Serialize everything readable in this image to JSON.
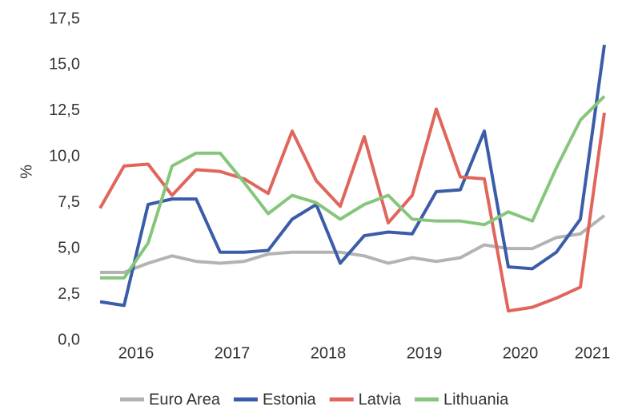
{
  "chart_data": {
    "type": "line",
    "y_label": "%",
    "categories": [
      null,
      null,
      "2016",
      null,
      null,
      null,
      "2017",
      null,
      null,
      null,
      "2018",
      null,
      null,
      null,
      "2019",
      null,
      null,
      null,
      "2020",
      null,
      null,
      "2021"
    ],
    "series": [
      {
        "name": "Euro Area",
        "color": "#b3b3b3",
        "values": [
          3.7,
          3.7,
          4.2,
          4.6,
          4.3,
          4.2,
          4.3,
          4.7,
          4.8,
          4.8,
          4.8,
          4.6,
          4.2,
          4.5,
          4.3,
          4.5,
          5.2,
          5.0,
          5.0,
          5.6,
          5.8,
          6.8
        ]
      },
      {
        "name": "Estonia",
        "color": "#3b5ca8",
        "values": [
          2.1,
          1.9,
          7.4,
          7.7,
          7.7,
          4.8,
          4.8,
          4.9,
          6.6,
          7.4,
          4.2,
          5.7,
          5.9,
          5.8,
          8.1,
          8.2,
          11.4,
          4.0,
          3.9,
          4.8,
          6.6,
          16.1
        ]
      },
      {
        "name": "Latvia",
        "color": "#e0665c",
        "values": [
          7.2,
          9.5,
          9.6,
          7.9,
          9.3,
          9.2,
          8.8,
          8.0,
          11.4,
          8.7,
          7.3,
          11.1,
          6.4,
          7.9,
          12.6,
          8.9,
          8.8,
          1.6,
          1.8,
          2.3,
          2.9,
          12.4
        ]
      },
      {
        "name": "Lithuania",
        "color": "#86c67c",
        "values": [
          3.4,
          3.4,
          5.3,
          9.5,
          10.2,
          10.2,
          8.6,
          6.9,
          7.9,
          7.5,
          6.6,
          7.4,
          7.9,
          6.6,
          6.5,
          6.5,
          6.3,
          7.0,
          6.5,
          9.4,
          12.0,
          13.3
        ]
      }
    ],
    "ylim": [
      0,
      17.5
    ],
    "yticks": [
      {
        "value": 0,
        "label": "0,0"
      },
      {
        "value": 2.5,
        "label": "2,5"
      },
      {
        "value": 5,
        "label": "5,0"
      },
      {
        "value": 7.5,
        "label": "7,5"
      },
      {
        "value": 10,
        "label": "10,0"
      },
      {
        "value": 12.5,
        "label": "12,5"
      },
      {
        "value": 15,
        "label": "15,0"
      },
      {
        "value": 17.5,
        "label": "17,5"
      }
    ],
    "grid": false,
    "legend": "bottom"
  }
}
